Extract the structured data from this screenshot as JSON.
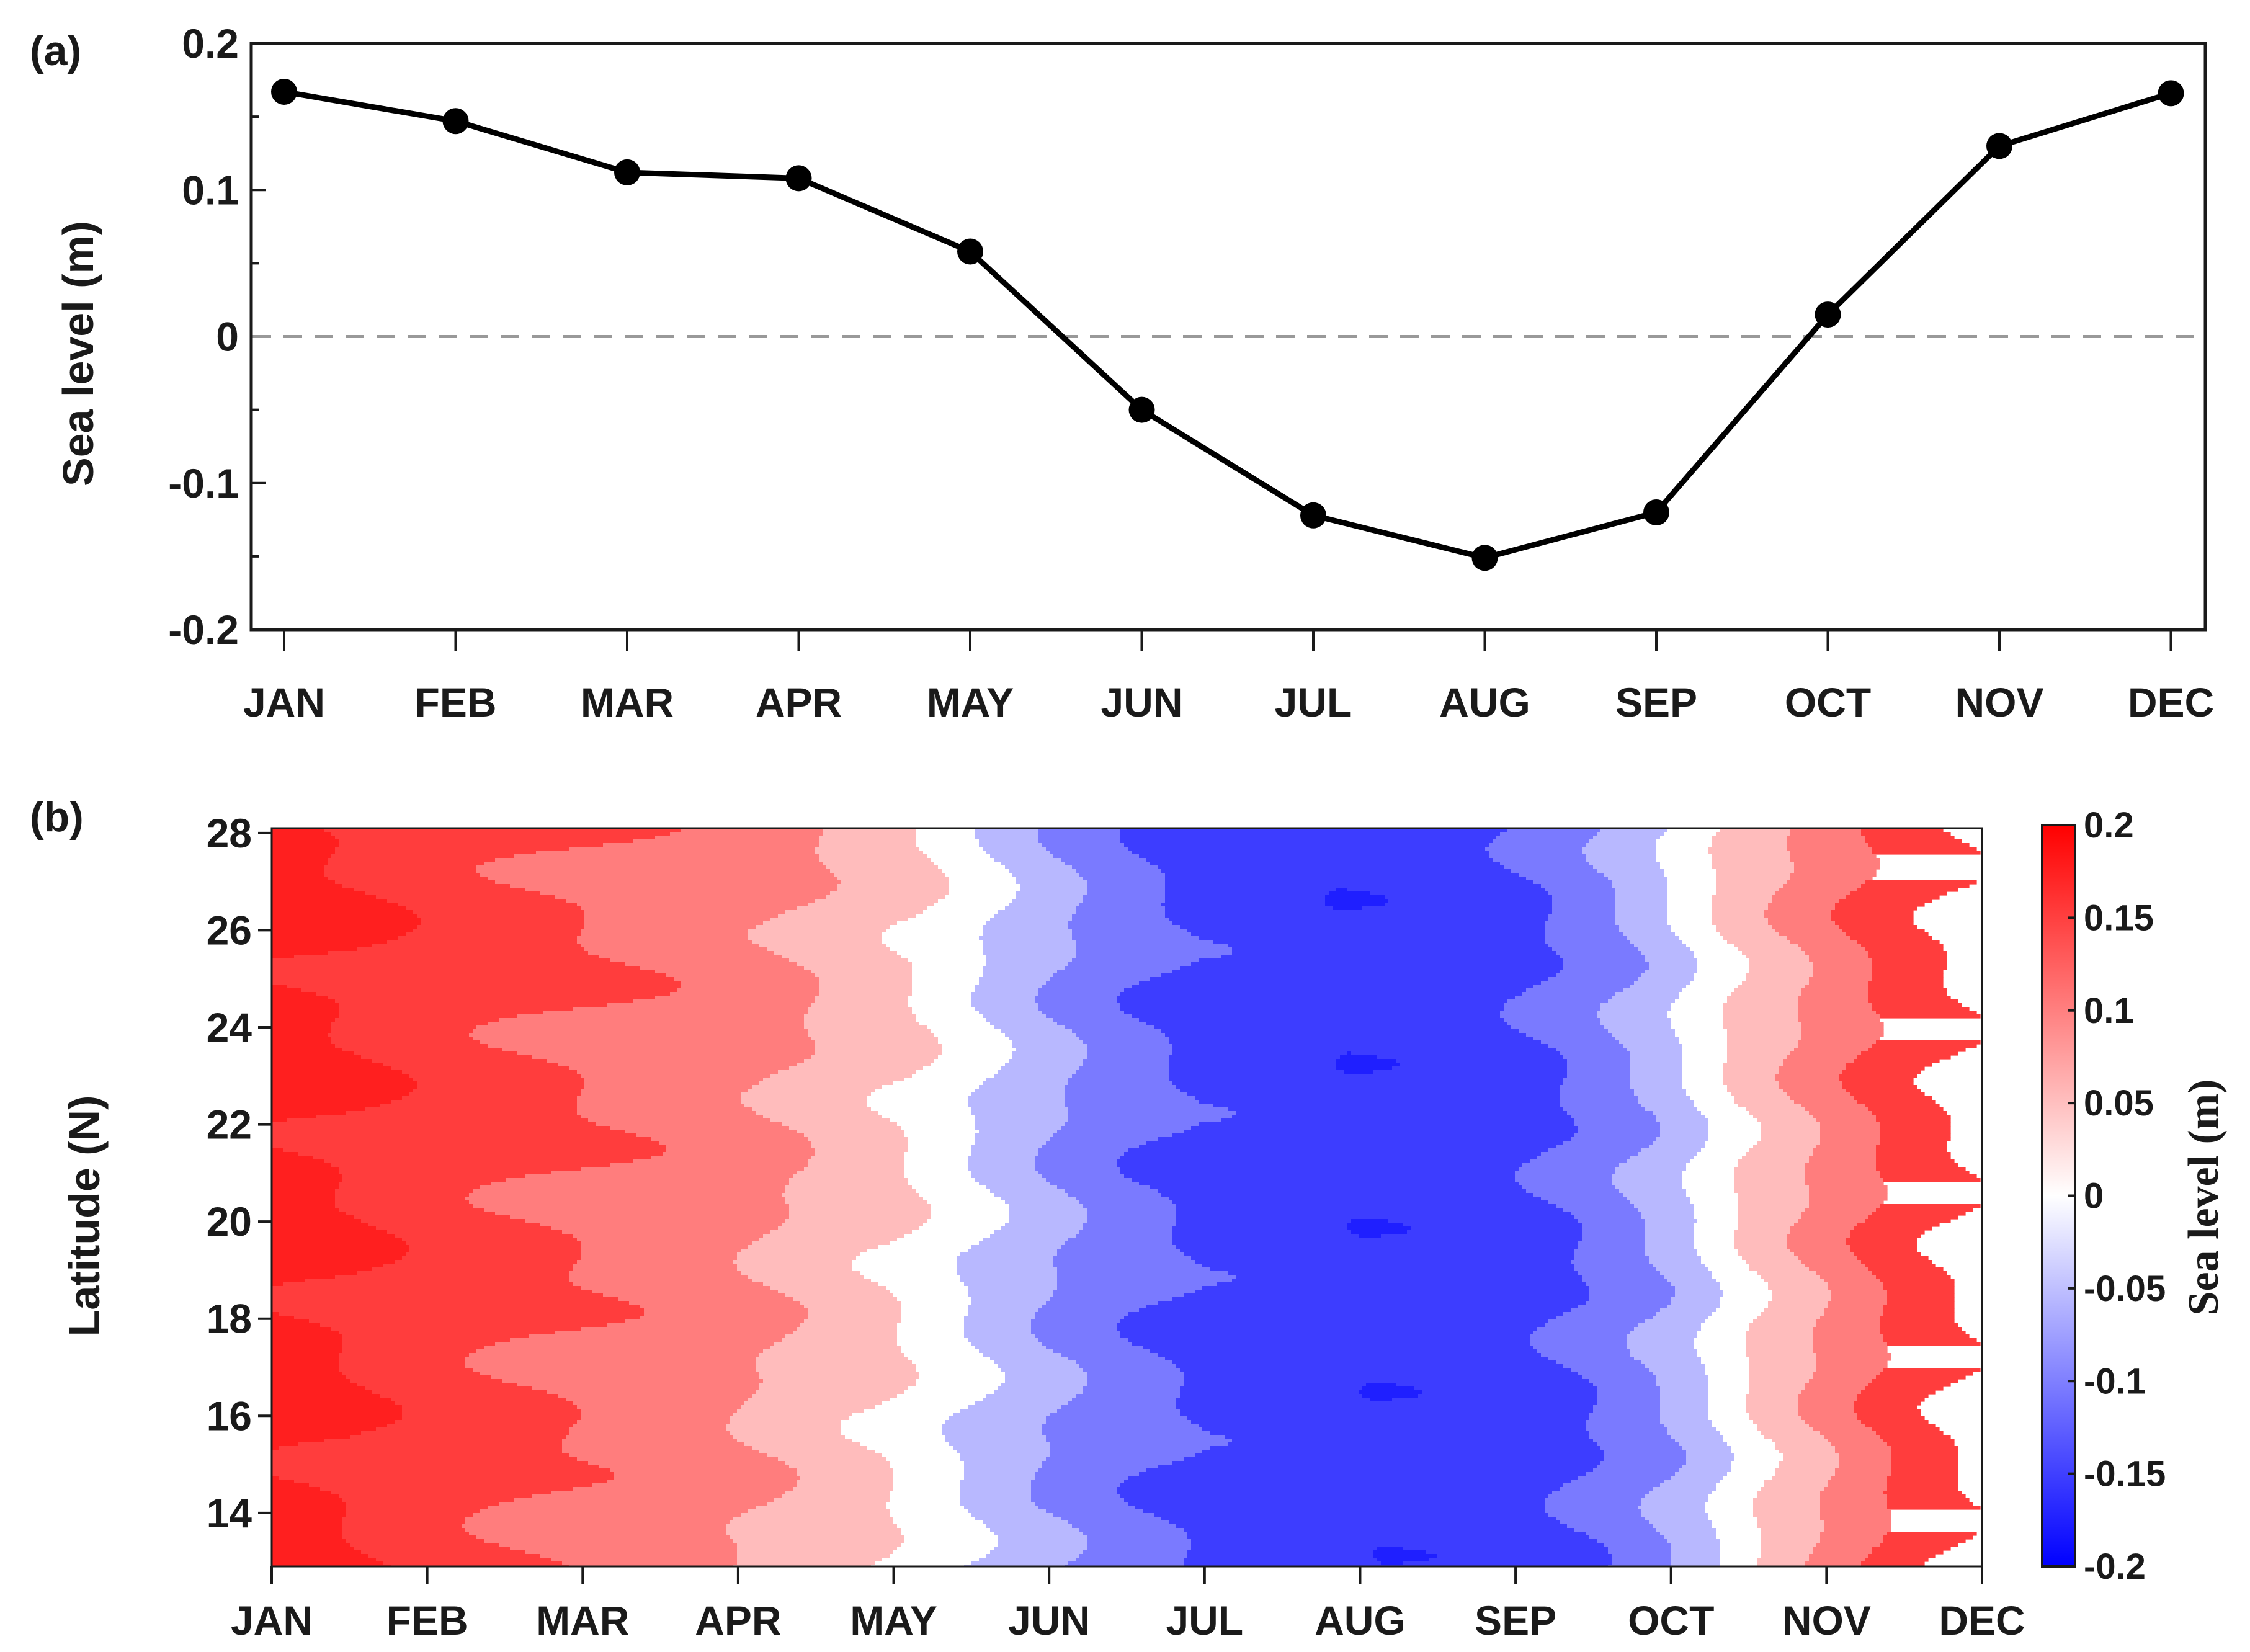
{
  "chart_data": [
    {
      "type": "line",
      "panel_label": "(a)",
      "title": "",
      "xlabel": "",
      "ylabel": "Sea level (m)",
      "categories": [
        "JAN",
        "FEB",
        "MAR",
        "APR",
        "MAY",
        "JUN",
        "JUL",
        "AUG",
        "SEP",
        "OCT",
        "NOV",
        "DEC"
      ],
      "series": [
        {
          "values": [
            0.167,
            0.147,
            0.112,
            0.108,
            0.058,
            -0.05,
            -0.122,
            -0.151,
            -0.12,
            0.015,
            0.13,
            0.166
          ]
        }
      ],
      "reference_line": {
        "y": 0,
        "style": "dashed",
        "color": "#999999"
      },
      "ylim": [
        -0.2,
        0.2
      ],
      "yticks": [
        -0.2,
        -0.1,
        0,
        0.1,
        0.2
      ],
      "ytick_labels": [
        "-0.2",
        "-0.1",
        "0",
        "0.1",
        "0.2"
      ],
      "grid": false,
      "line_color": "#000000",
      "marker": "filled-circle"
    },
    {
      "type": "heatmap",
      "panel_label": "(b)",
      "title": "",
      "xlabel": "",
      "ylabel": "Latitude (N)",
      "x_categories": [
        "JAN",
        "FEB",
        "MAR",
        "APR",
        "MAY",
        "JUN",
        "JUL",
        "AUG",
        "SEP",
        "OCT",
        "NOV",
        "DEC"
      ],
      "xlim": [
        1,
        12
      ],
      "ylim": [
        12.9,
        28.1
      ],
      "yticks": [
        14,
        16,
        18,
        20,
        22,
        24,
        26,
        28
      ],
      "colorbar": {
        "label": "Sea level (m)",
        "range": [
          -0.2,
          0.2
        ],
        "ticks": [
          0.2,
          0.15,
          0.1,
          0.05,
          0,
          -0.05,
          -0.1,
          -0.15,
          -0.2
        ],
        "tick_labels": [
          "0.2",
          "0.15",
          "0.1",
          "0.05",
          "0",
          "-0.05",
          "-0.1",
          "-0.15",
          "-0.2"
        ],
        "low_color": "#0000ff",
        "mid_color": "#ffffff",
        "high_color": "#ff0000"
      },
      "contour_levels": [
        -0.175,
        -0.125,
        -0.075,
        -0.025,
        0.025,
        0.075,
        0.125,
        0.175
      ],
      "band_colors": [
        "#1f1fff",
        "#3d3dff",
        "#7a7aff",
        "#b8b8ff",
        "#ffffff",
        "#ffbcbc",
        "#ff7d7d",
        "#ff3d3d",
        "#ff1f1f"
      ]
    }
  ]
}
